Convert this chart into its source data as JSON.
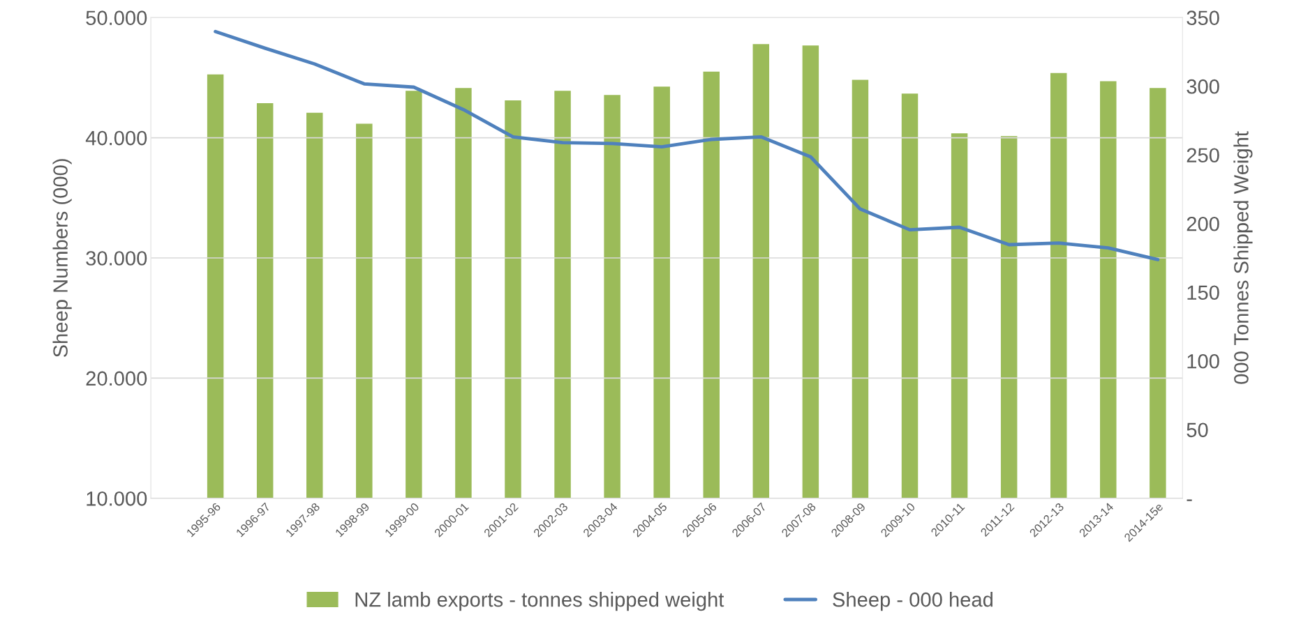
{
  "chart_data": {
    "type": "bar",
    "categories": [
      "1995-96",
      "1996-97",
      "1997-98",
      "1998-99",
      "1999-00",
      "2000-01",
      "2001-02",
      "2002-03",
      "2003-04",
      "2004-05",
      "2005-06",
      "2006-07",
      "2007-08",
      "2008-09",
      "2009-10",
      "2010-11",
      "2011-12",
      "2012-13",
      "2013-14",
      "2014-15e"
    ],
    "series": [
      {
        "name": "NZ lamb exports - tonnes shipped weight",
        "axis": "y2",
        "color": "#9bbb59",
        "values": [
          309,
          288,
          281,
          273,
          297,
          299,
          290,
          297,
          294,
          300,
          311,
          331,
          330,
          305,
          295,
          266,
          264,
          310,
          304,
          299
        ]
      },
      {
        "name": "Sheep - 000 head",
        "type": "line",
        "axis": "y",
        "color": "#4f81bd",
        "values": [
          48830,
          47450,
          46140,
          44480,
          44210,
          42340,
          40070,
          39590,
          39520,
          39240,
          39860,
          40070,
          38410,
          34070,
          32340,
          32550,
          31100,
          31240,
          30830,
          29860
        ]
      }
    ],
    "ylabel": "Sheep Numbers (000)",
    "y2label": "000 Tonnes Shipped Weight",
    "ylim": [
      10000,
      50000
    ],
    "yticks": [
      {
        "value": 10000,
        "label": "10.000"
      },
      {
        "value": 20000,
        "label": "20.000"
      },
      {
        "value": 30000,
        "label": "30.000"
      },
      {
        "value": 40000,
        "label": "40.000"
      },
      {
        "value": 50000,
        "label": "50.000"
      }
    ],
    "y2lim": [
      0,
      350
    ],
    "y2ticks": [
      {
        "value": 0,
        "label": "-"
      },
      50,
      100,
      150,
      200,
      250,
      300,
      350
    ],
    "grid": "y",
    "legend": "bottom",
    "marker": "none",
    "line_style": "solid"
  }
}
